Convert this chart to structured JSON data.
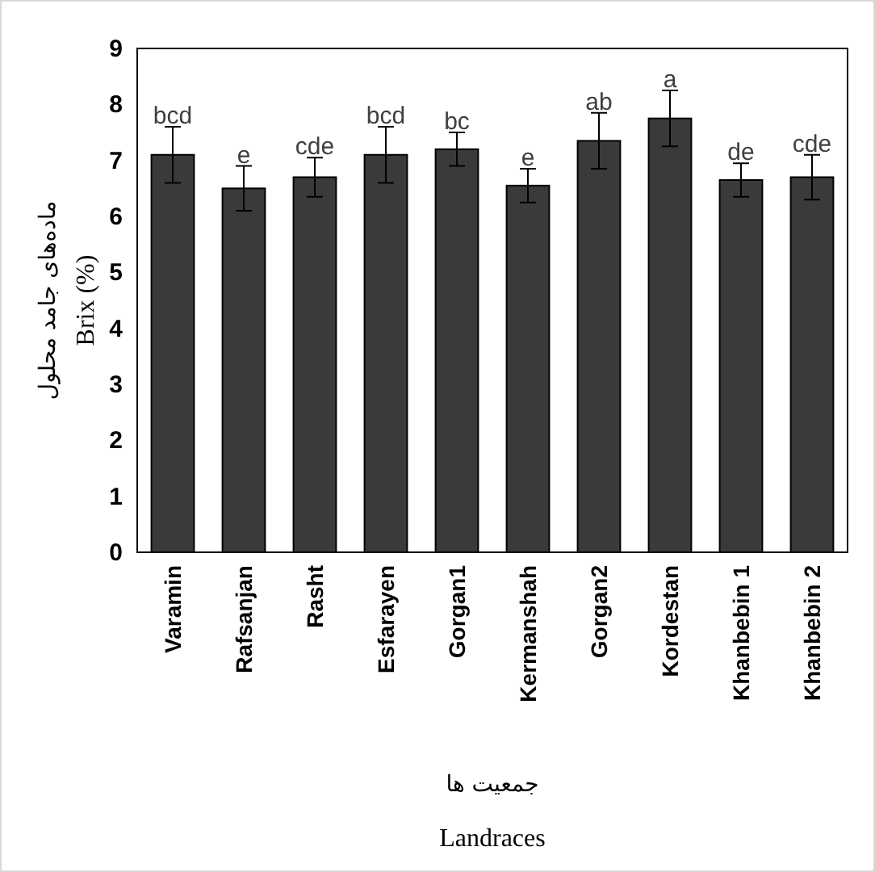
{
  "chart_data": {
    "type": "bar",
    "xlabel": "جمعیت ها",
    "ylabel": "Brix (%)",
    "annotations": [
      "ماده‌های جامد محلول",
      "Landraces"
    ],
    "categories": [
      "Varamin",
      "Rafsanjan",
      "Rasht",
      "Esfarayen",
      "Gorgan1",
      "Kermanshah",
      "Gorgan2",
      "Kordestan",
      "Khanbebin 1",
      "Khanbebin 2"
    ],
    "values": [
      7.1,
      6.5,
      6.7,
      7.1,
      7.2,
      6.55,
      7.35,
      7.75,
      6.65,
      6.7
    ],
    "errors": [
      0.5,
      0.4,
      0.35,
      0.5,
      0.3,
      0.3,
      0.5,
      0.5,
      0.3,
      0.4
    ],
    "value_labels": [
      "bcd",
      "e",
      "cde",
      "bcd",
      "bc",
      "e",
      "ab",
      "a",
      "de",
      "cde"
    ],
    "color": "#3a3a3a",
    "ylim": [
      0,
      9
    ],
    "yticks": [
      0,
      1,
      2,
      3,
      4,
      5,
      6,
      7,
      8,
      9
    ],
    "grid": false
  }
}
